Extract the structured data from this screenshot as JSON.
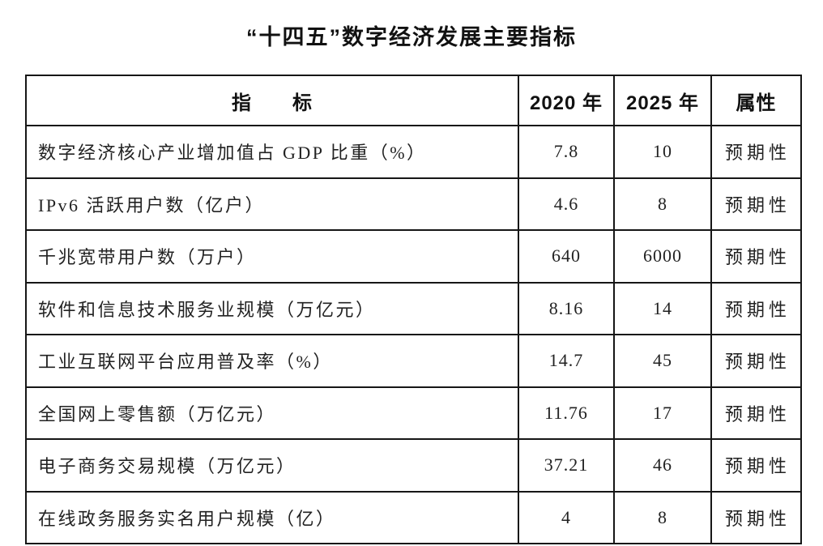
{
  "page": {
    "background": "#ffffff",
    "text_color": "#222222",
    "border_color": "#161616"
  },
  "title": "“十四五”数字经济发展主要指标",
  "table": {
    "headers": {
      "indicator": "指　　标",
      "y2020": "2020 年",
      "y2025": "2025 年",
      "attribute": "属性"
    },
    "rows": [
      {
        "indicator": "数字经济核心产业增加值占 GDP 比重（%）",
        "y2020": "7.8",
        "y2025": "10",
        "attribute": "预期性"
      },
      {
        "indicator": "IPv6 活跃用户数（亿户）",
        "y2020": "4.6",
        "y2025": "8",
        "attribute": "预期性"
      },
      {
        "indicator": "千兆宽带用户数（万户）",
        "y2020": "640",
        "y2025": "6000",
        "attribute": "预期性"
      },
      {
        "indicator": "软件和信息技术服务业规模（万亿元）",
        "y2020": "8.16",
        "y2025": "14",
        "attribute": "预期性"
      },
      {
        "indicator": "工业互联网平台应用普及率（%）",
        "y2020": "14.7",
        "y2025": "45",
        "attribute": "预期性"
      },
      {
        "indicator": "全国网上零售额（万亿元）",
        "y2020": "11.76",
        "y2025": "17",
        "attribute": "预期性"
      },
      {
        "indicator": "电子商务交易规模（万亿元）",
        "y2020": "37.21",
        "y2025": "46",
        "attribute": "预期性"
      },
      {
        "indicator": "在线政务服务实名用户规模（亿）",
        "y2020": "4",
        "y2025": "8",
        "attribute": "预期性"
      }
    ]
  }
}
